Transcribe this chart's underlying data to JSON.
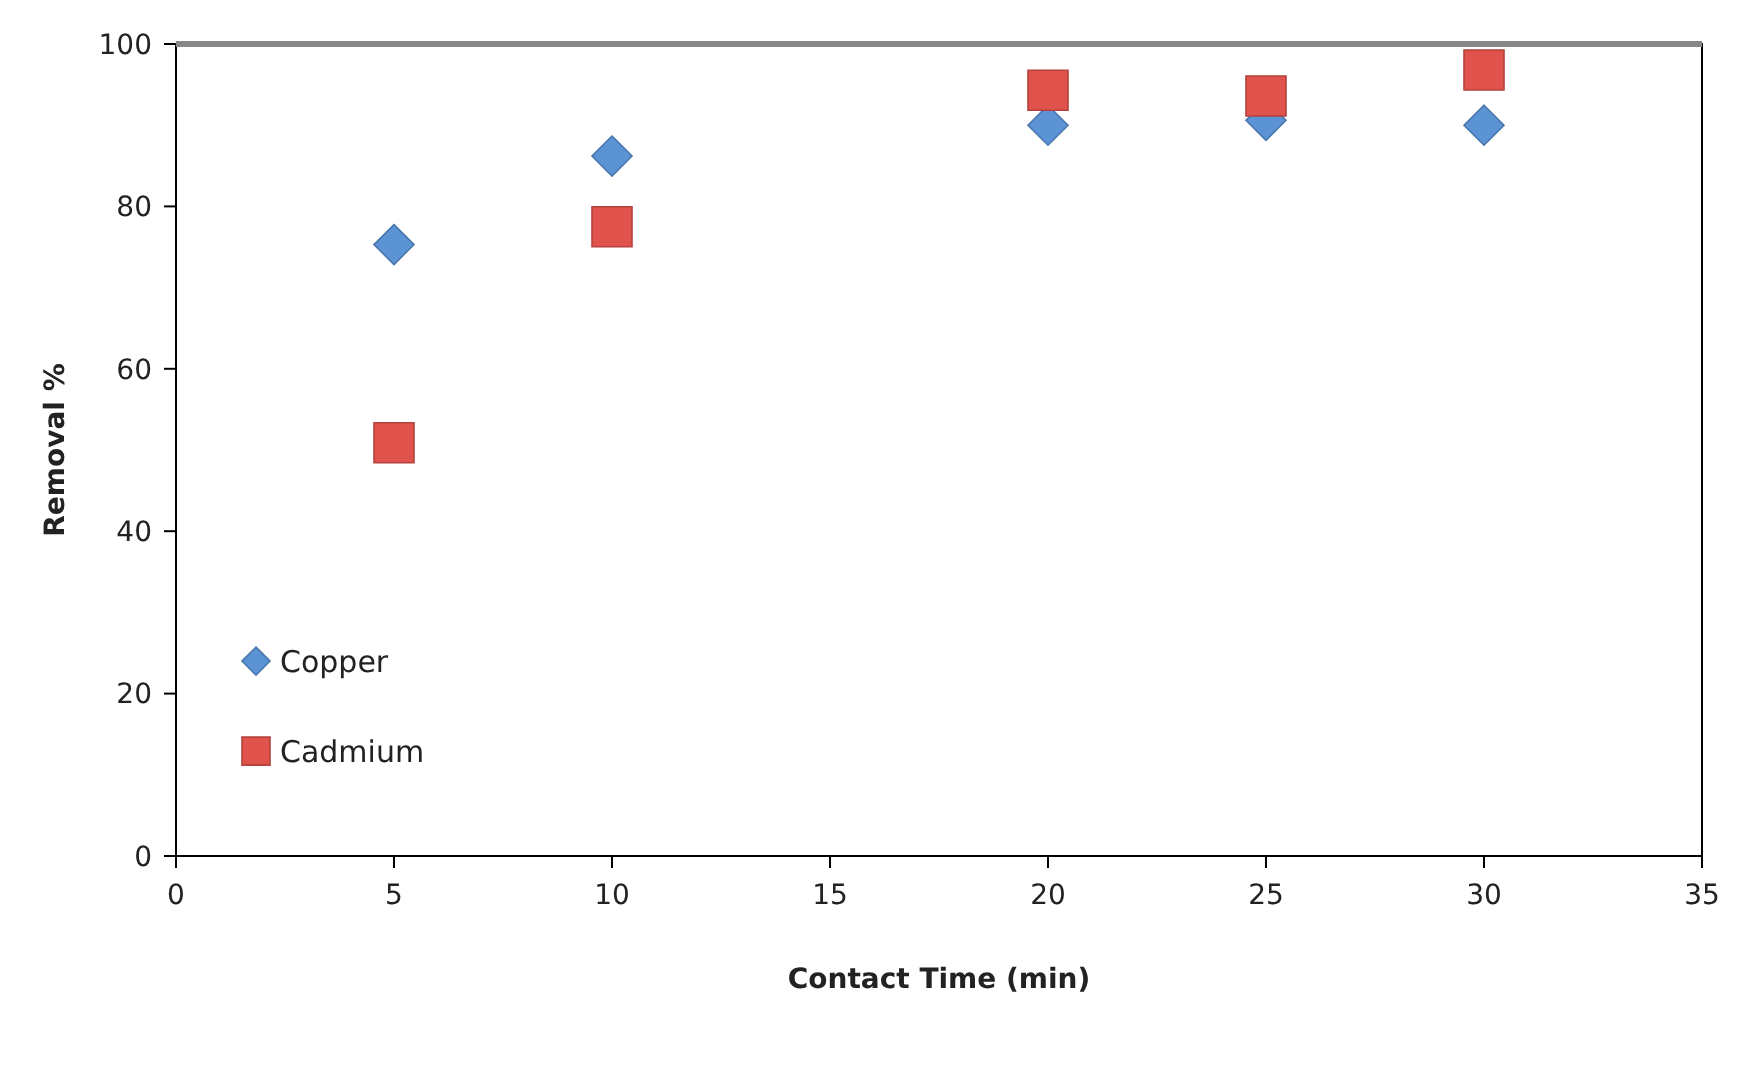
{
  "chart_data": {
    "type": "scatter",
    "xlabel": "Contact Time (min)",
    "ylabel": "Removal %",
    "x": [
      5,
      10,
      20,
      25,
      30
    ],
    "series": [
      {
        "name": "Copper",
        "color": "#5b93d5",
        "marker": "diamond",
        "values": [
          75.3,
          86.2,
          90,
          90.6,
          90
        ]
      },
      {
        "name": "Cadmium",
        "color": "#e0524c",
        "marker": "square",
        "values": [
          50.9,
          77.5,
          94.3,
          93.6,
          96.8
        ]
      }
    ],
    "xlim": [
      0,
      35
    ],
    "xticks": [
      0,
      5,
      10,
      15,
      20,
      25,
      30,
      35
    ],
    "ylim": [
      0,
      100
    ],
    "yticks": [
      0,
      20,
      40,
      60,
      80,
      100
    ],
    "grid": false,
    "legend": "left"
  }
}
